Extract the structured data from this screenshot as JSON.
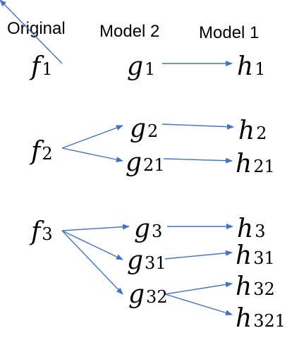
{
  "headers": {
    "original": "Original",
    "model2": "Model 2",
    "model1": "Model 1"
  },
  "nodes": {
    "f1": {
      "base": "f",
      "sub": "1"
    },
    "f2": {
      "base": "f",
      "sub": "2"
    },
    "f3": {
      "base": "f",
      "sub": "3"
    },
    "g1": {
      "base": "g",
      "sub": "1"
    },
    "g2": {
      "base": "g",
      "sub": "2"
    },
    "g21": {
      "base": "g",
      "sub": "21"
    },
    "g3": {
      "base": "g",
      "sub": "3"
    },
    "g31": {
      "base": "g",
      "sub": "31"
    },
    "g32": {
      "base": "g",
      "sub": "32"
    },
    "h1": {
      "base": "h",
      "sub": "1"
    },
    "h2": {
      "base": "h",
      "sub": "2"
    },
    "h21": {
      "base": "h",
      "sub": "21"
    },
    "h3": {
      "base": "h",
      "sub": "3"
    },
    "h31": {
      "base": "h",
      "sub": "31"
    },
    "h32": {
      "base": "h",
      "sub": "32"
    },
    "h321": {
      "base": "h",
      "sub": "321"
    }
  },
  "edges": [
    {
      "from": "f1",
      "to": "g1"
    },
    {
      "from": "g1",
      "to": "h1"
    },
    {
      "from": "f2",
      "to": "g2"
    },
    {
      "from": "f2",
      "to": "g21"
    },
    {
      "from": "g2",
      "to": "h2"
    },
    {
      "from": "g21",
      "to": "h21"
    },
    {
      "from": "f3",
      "to": "g3"
    },
    {
      "from": "f3",
      "to": "g31"
    },
    {
      "from": "f3",
      "to": "g32"
    },
    {
      "from": "g3",
      "to": "h3"
    },
    {
      "from": "g31",
      "to": "h31"
    },
    {
      "from": "g32",
      "to": "h32"
    },
    {
      "from": "g32",
      "to": "h321"
    }
  ],
  "colors": {
    "arrow": "#4472c4",
    "text": "#000000",
    "background": "#ffffff"
  }
}
